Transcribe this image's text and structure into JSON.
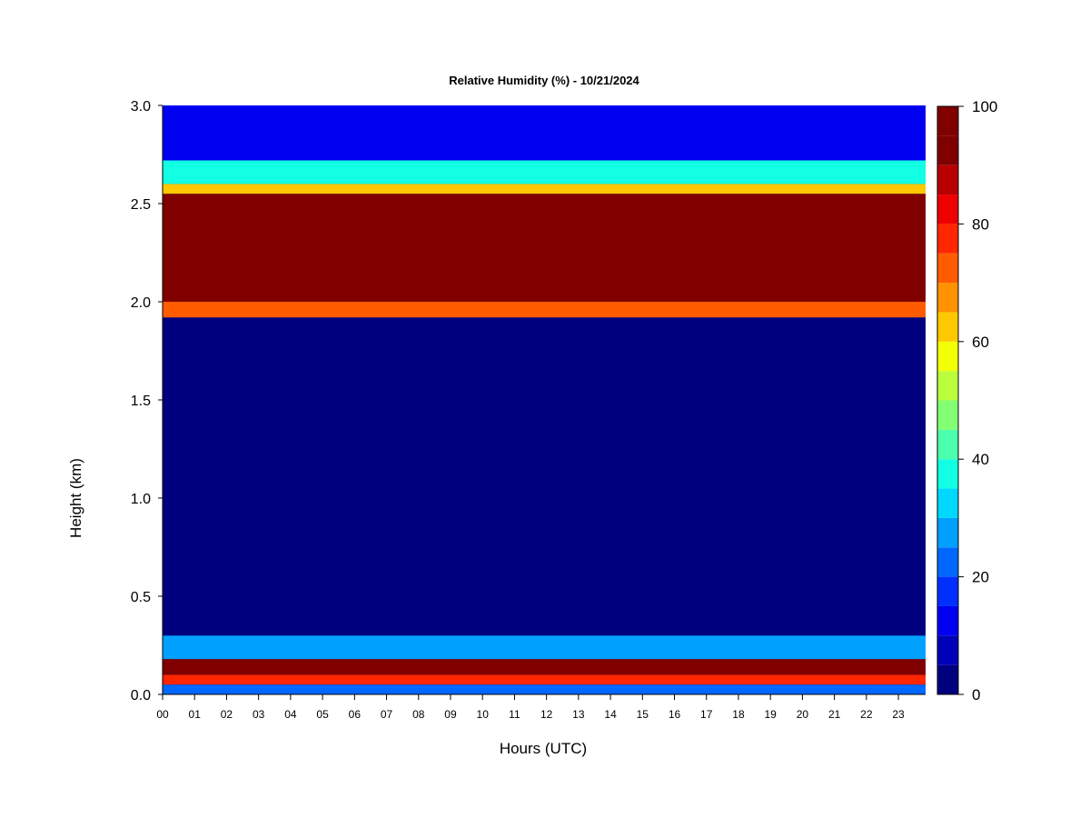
{
  "chart_data": {
    "type": "heatmap",
    "title": "Relative Humidity (%) - 10/21/2024",
    "xlabel": "Hours (UTC)",
    "ylabel": "Height (km)",
    "x_ticks": [
      "00",
      "01",
      "02",
      "03",
      "04",
      "05",
      "06",
      "07",
      "08",
      "09",
      "10",
      "11",
      "12",
      "13",
      "14",
      "15",
      "16",
      "17",
      "18",
      "19",
      "20",
      "21",
      "22",
      "23"
    ],
    "xlim": [
      0,
      23.85
    ],
    "ylim": [
      0.0,
      3.0
    ],
    "y_ticks": [
      "0.0",
      "0.5",
      "1.0",
      "1.5",
      "2.0",
      "2.5",
      "3.0"
    ],
    "y_tick_values": [
      0.0,
      0.5,
      1.0,
      1.5,
      2.0,
      2.5,
      3.0
    ],
    "colorbar": {
      "min": 0,
      "max": 100,
      "step": 5,
      "ticks": [
        "0",
        "20",
        "40",
        "60",
        "80",
        "100"
      ],
      "tick_values": [
        0,
        20,
        40,
        60,
        80,
        100
      ],
      "colors": [
        "#00007f",
        "#0000b8",
        "#0000f0",
        "#0030ff",
        "#0068ff",
        "#00a0ff",
        "#00d8ff",
        "#13ffe4",
        "#4bffac",
        "#83ff74",
        "#bbff3c",
        "#f3ff04",
        "#ffc800",
        "#ff9200",
        "#ff5c00",
        "#ff2600",
        "#ee0000",
        "#b80000",
        "#800000",
        "#800000"
      ]
    },
    "layers_km": [
      {
        "from": 0.0,
        "to": 0.05,
        "rh": 20
      },
      {
        "from": 0.05,
        "to": 0.1,
        "rh": 75
      },
      {
        "from": 0.1,
        "to": 0.18,
        "rh": 95
      },
      {
        "from": 0.18,
        "to": 0.3,
        "rh": 25
      },
      {
        "from": 0.3,
        "to": 1.92,
        "rh": 0
      },
      {
        "from": 1.92,
        "to": 2.0,
        "rh": 70
      },
      {
        "from": 2.0,
        "to": 2.55,
        "rh": 100
      },
      {
        "from": 2.55,
        "to": 2.6,
        "rh": 60
      },
      {
        "from": 2.6,
        "to": 2.72,
        "rh": 35
      },
      {
        "from": 2.72,
        "to": 3.0,
        "rh": 10
      }
    ]
  }
}
